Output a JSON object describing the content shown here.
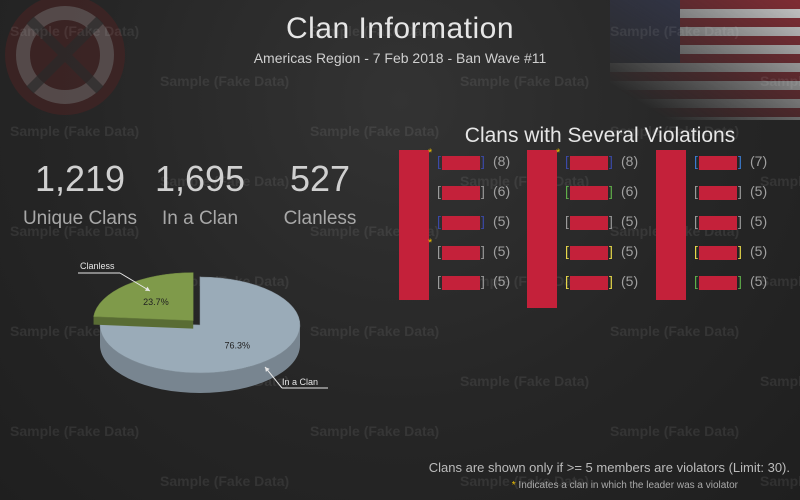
{
  "header": {
    "title": "Clan Information",
    "subtitle": "Americas Region -  7 Feb 2018 - Ban Wave #11"
  },
  "watermark_text": "Sample (Fake Data)",
  "stats": [
    {
      "value": "1,219",
      "label": "Unique Clans"
    },
    {
      "value": "1,695",
      "label": "In a Clan"
    },
    {
      "value": "527",
      "label": "Clanless"
    }
  ],
  "violations": {
    "title": "Clans with Several Violations",
    "columns": [
      {
        "entries": [
          {
            "count": "(8)",
            "star": true,
            "bracket_color": "#3b4aa8"
          },
          {
            "count": "(6)",
            "star": false,
            "bracket_color": "#9a9a9a"
          },
          {
            "count": "(5)",
            "star": false,
            "bracket_color": "#3b4aa8"
          },
          {
            "count": "(5)",
            "star": true,
            "bracket_color": "#9a9a9a"
          },
          {
            "count": "(5)",
            "star": false,
            "bracket_color": "#9a9a9a"
          }
        ]
      },
      {
        "entries": [
          {
            "count": "(8)",
            "star": true,
            "bracket_color": "#3b4aa8"
          },
          {
            "count": "(6)",
            "star": false,
            "bracket_color": "#5fae4a"
          },
          {
            "count": "(5)",
            "star": false,
            "bracket_color": "#9a9a9a"
          },
          {
            "count": "(5)",
            "star": false,
            "bracket_color": "#e6d84a"
          },
          {
            "count": "(5)",
            "star": false,
            "bracket_color": "#e6d84a"
          }
        ]
      },
      {
        "entries": [
          {
            "count": "(7)",
            "star": false,
            "bracket_color": "#3b7bd0"
          },
          {
            "count": "(5)",
            "star": false,
            "bracket_color": "#9a9a9a"
          },
          {
            "count": "(5)",
            "star": false,
            "bracket_color": "#9a9a9a"
          },
          {
            "count": "(5)",
            "star": false,
            "bracket_color": "#e6d84a"
          },
          {
            "count": "(5)",
            "star": false,
            "bracket_color": "#5fae4a"
          }
        ]
      }
    ]
  },
  "footer": {
    "note": "Clans are shown only if >= 5 members are violators (Limit: 30).",
    "star_symbol": "*",
    "star_note": "Indicates a clan in which the leader was a violator"
  },
  "chart_data": {
    "type": "pie",
    "slices": [
      {
        "label": "In a Clan",
        "value": 76.3,
        "value_label": "76.3%",
        "color": "#9aabb8"
      },
      {
        "label": "Clanless",
        "value": 23.7,
        "value_label": "23.7%",
        "color": "#7f9a4a"
      }
    ]
  }
}
